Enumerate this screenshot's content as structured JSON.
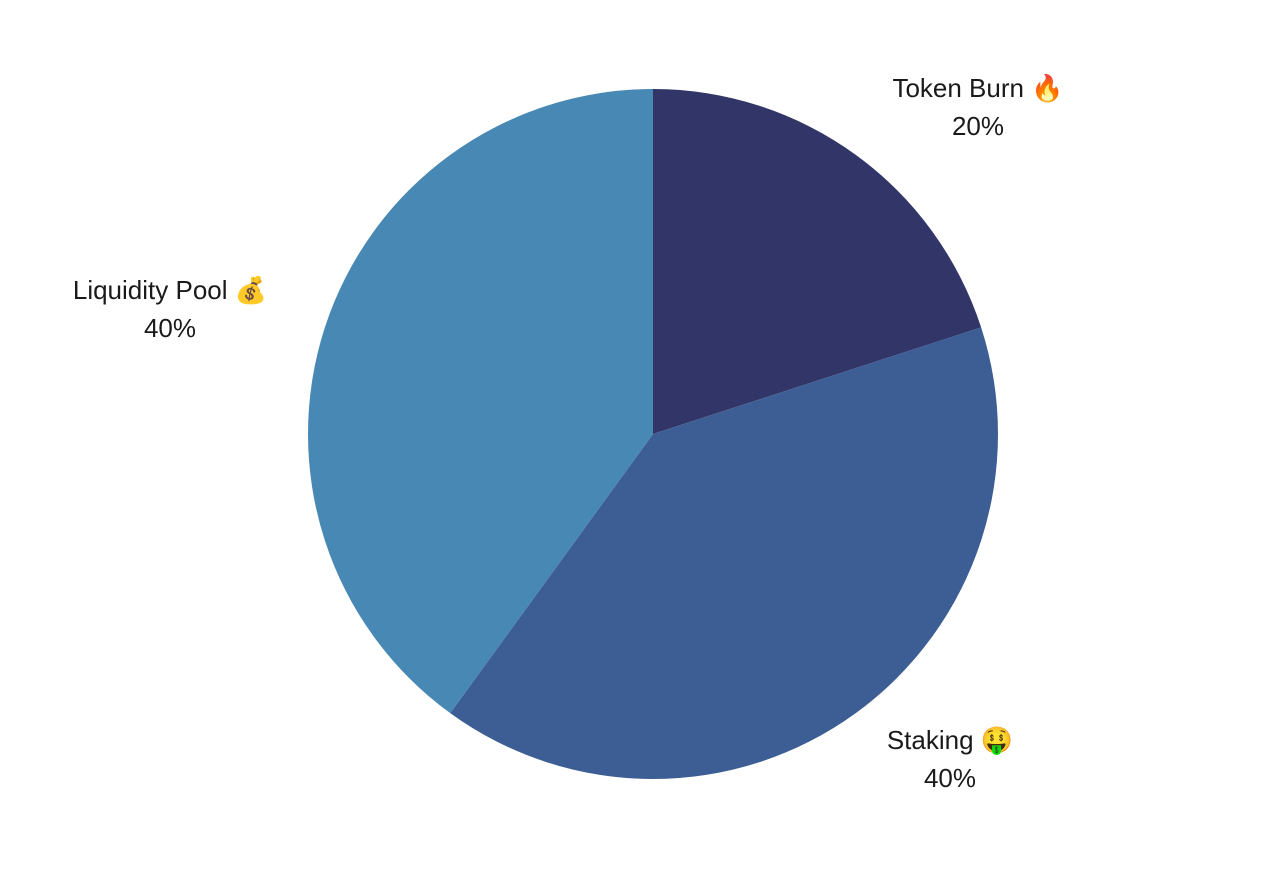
{
  "chart_data": {
    "type": "pie",
    "categories": [
      "Token Burn 🔥",
      "Staking 🤑",
      "Liquidity Pool 💰"
    ],
    "values": [
      20,
      40,
      40
    ],
    "value_labels": [
      "20%",
      "40%",
      "40%"
    ],
    "colors": [
      "#313568",
      "#3d5e94",
      "#4888b4"
    ]
  }
}
